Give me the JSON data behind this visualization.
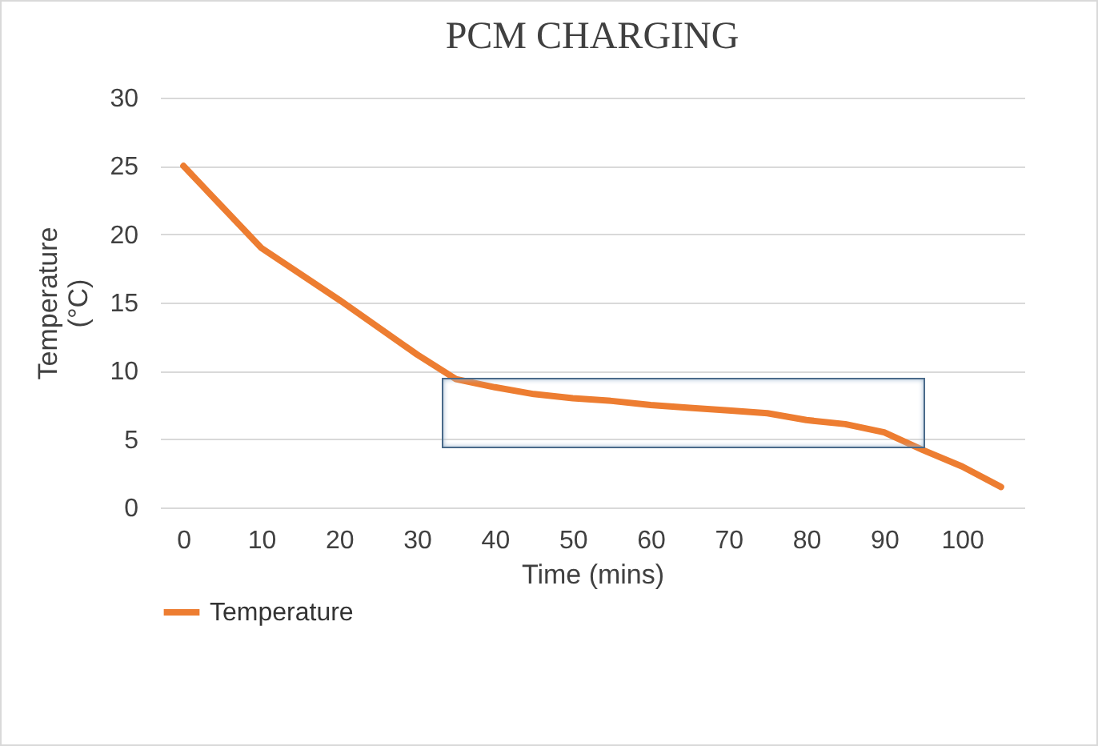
{
  "chart_data": {
    "type": "line",
    "title": "PCM CHARGING",
    "xlabel": "Time (mins)",
    "ylabel": "Temperature (°C)",
    "x": [
      0,
      10,
      20,
      30,
      35,
      40,
      45,
      50,
      55,
      60,
      65,
      70,
      75,
      80,
      85,
      90,
      95,
      100,
      105
    ],
    "series": [
      {
        "name": "Temperature",
        "color": "#ed7d31",
        "values": [
          25,
          19,
          15.2,
          11.2,
          9.4,
          8.8,
          8.3,
          8,
          7.8,
          7.5,
          7.3,
          7.1,
          6.9,
          6.4,
          6.1,
          5.5,
          4.2,
          3,
          1.5
        ]
      }
    ],
    "xlim": [
      -3,
      108
    ],
    "xticks": [
      0,
      10,
      20,
      30,
      40,
      50,
      60,
      70,
      80,
      90,
      100
    ],
    "ylim": [
      0,
      30
    ],
    "yticks": [
      0,
      5,
      10,
      15,
      20,
      25,
      30
    ],
    "grid": "y",
    "legend": "bottom",
    "line_style": "solid",
    "marker": "none"
  }
}
